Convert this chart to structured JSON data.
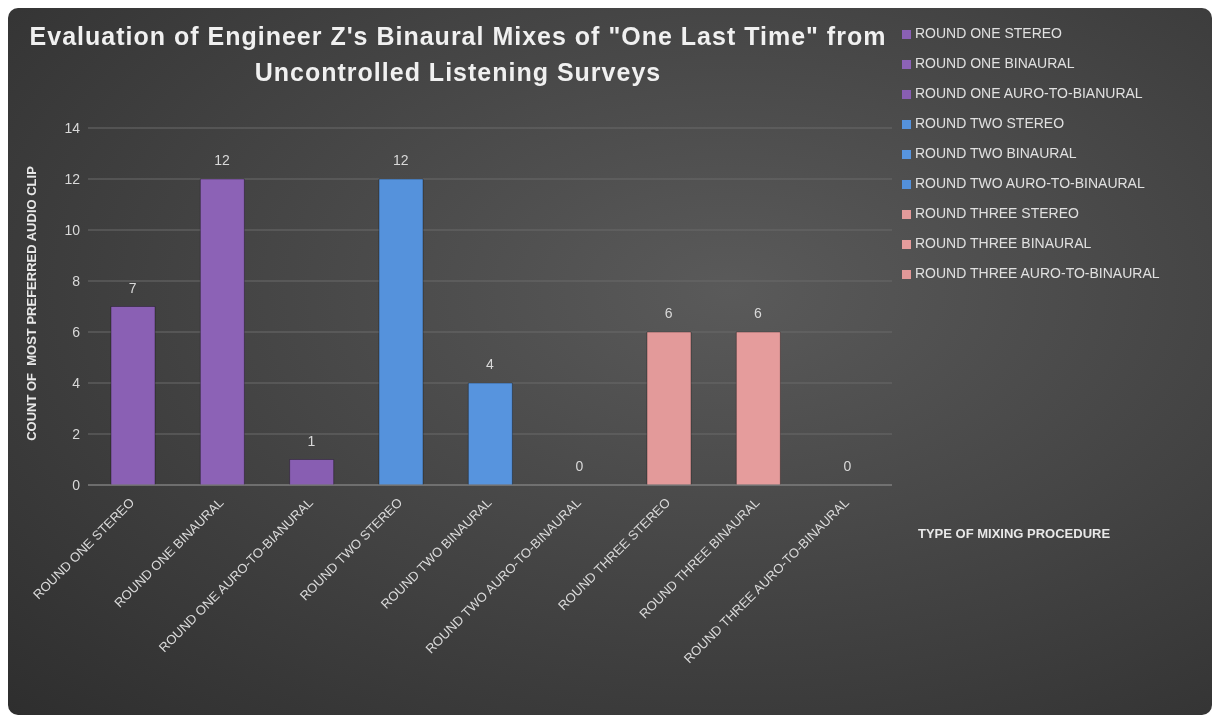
{
  "chart_data": {
    "type": "bar",
    "title": "Evaluation of Engineer Z's Binaural Mixes of \"One Last Time\" from Uncontrolled Listening Surveys",
    "xlabel": "TYPE OF MIXING PROCEDURE",
    "ylabel": "COUNT OF  MOST PREFERRED AUDIO CLIP",
    "categories": [
      "ROUND ONE STEREO",
      "ROUND ONE BINAURAL",
      "ROUND ONE AURO-TO-BIANURAL",
      "ROUND TWO STEREO",
      "ROUND TWO BINAURAL",
      "ROUND TWO AURO-TO-BINAURAL",
      "ROUND THREE STEREO",
      "ROUND THREE BINAURAL",
      "ROUND THREE AURO-TO-BINAURAL"
    ],
    "series": [
      {
        "name": "ROUND ONE STEREO",
        "color": "#8a60b4",
        "values": [
          7,
          null,
          null,
          null,
          null,
          null,
          null,
          null,
          null
        ]
      },
      {
        "name": "ROUND ONE BINAURAL",
        "color": "#8c62b6",
        "values": [
          null,
          12,
          null,
          null,
          null,
          null,
          null,
          null,
          null
        ]
      },
      {
        "name": "ROUND ONE AURO-TO-BIANURAL",
        "color": "#885eb2",
        "values": [
          null,
          null,
          1,
          null,
          null,
          null,
          null,
          null,
          null
        ]
      },
      {
        "name": "ROUND TWO STEREO",
        "color": "#5592dc",
        "values": [
          null,
          null,
          null,
          12,
          null,
          null,
          null,
          null,
          null
        ]
      },
      {
        "name": "ROUND TWO BINAURAL",
        "color": "#5794de",
        "values": [
          null,
          null,
          null,
          null,
          4,
          null,
          null,
          null,
          null
        ]
      },
      {
        "name": "ROUND TWO AURO-TO-BINAURAL",
        "color": "#5390da",
        "values": [
          null,
          null,
          null,
          null,
          null,
          0,
          null,
          null,
          null
        ]
      },
      {
        "name": "ROUND THREE STEREO",
        "color": "#e39a9a",
        "values": [
          null,
          null,
          null,
          null,
          null,
          null,
          6,
          null,
          null
        ]
      },
      {
        "name": "ROUND THREE BINAURAL",
        "color": "#e59c9c",
        "values": [
          null,
          null,
          null,
          null,
          null,
          null,
          null,
          6,
          null
        ]
      },
      {
        "name": "ROUND THREE AURO-TO-BINAURAL",
        "color": "#e19898",
        "values": [
          null,
          null,
          null,
          null,
          null,
          null,
          null,
          null,
          0
        ]
      }
    ],
    "ylim": [
      0,
      14
    ],
    "yticks": [
      0,
      2,
      4,
      6,
      8,
      10,
      12,
      14
    ],
    "grid": "y",
    "legend": "right",
    "data_labels": true
  }
}
